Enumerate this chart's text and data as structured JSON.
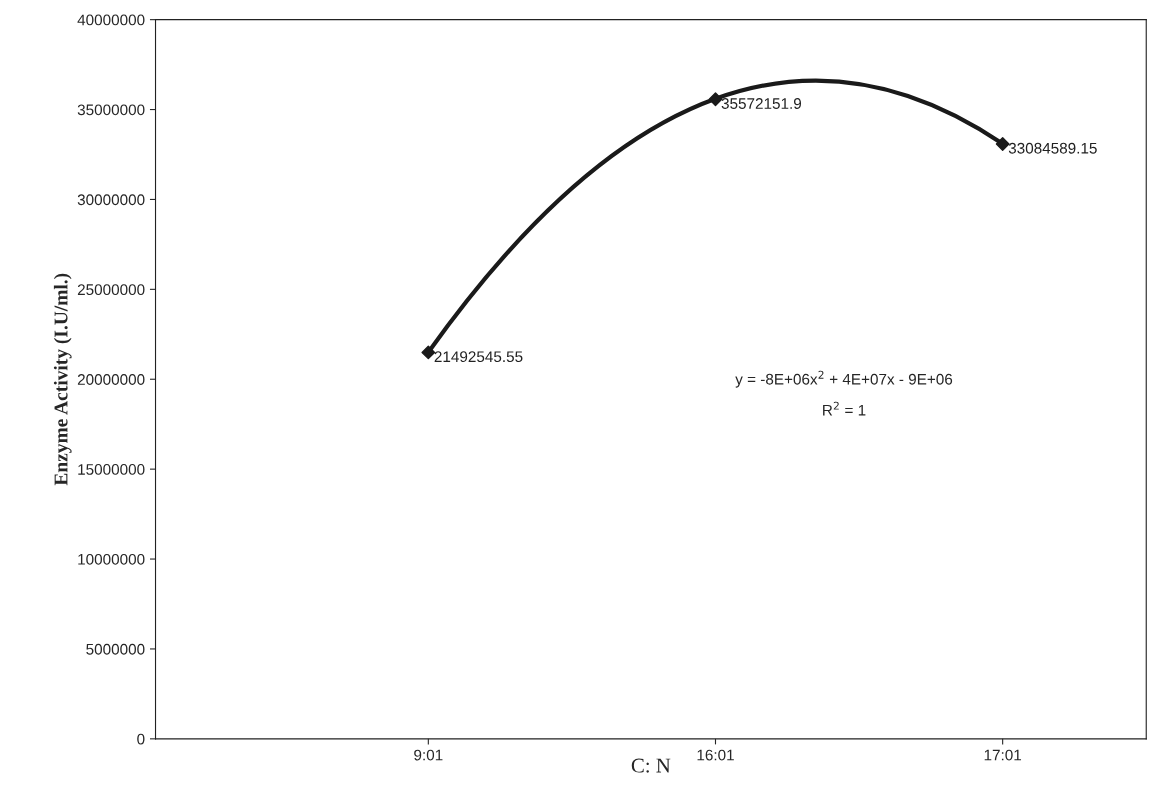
{
  "chart_data": {
    "type": "scatter",
    "xlabel": "C: N",
    "ylabel": "Enzyme Activity (I.U/ml.)",
    "categories": [
      "9:01",
      "16:01",
      "17:01"
    ],
    "ylim": [
      0,
      40000000
    ],
    "yticks": [
      0,
      5000000,
      10000000,
      15000000,
      20000000,
      25000000,
      30000000,
      35000000,
      40000000
    ],
    "grid": false,
    "series": [
      {
        "type": "line",
        "color": "#1a1a1a",
        "line_style": "solid",
        "marker": "none",
        "values": [
          21500000,
          35600000,
          33100000
        ]
      },
      {
        "color": "#1a1a1a",
        "marker": "diamond",
        "data_labels": true,
        "values": [
          21492545.55,
          35572151.9,
          33084589.15
        ],
        "value_labels": [
          "21492545.55",
          "35572151.9",
          "33084589.15"
        ]
      }
    ],
    "annotations": [
      "y = -8E+06x$^{2}$ + 4E+07x - 9E+06",
      "R$^{2}$ = 1"
    ]
  }
}
